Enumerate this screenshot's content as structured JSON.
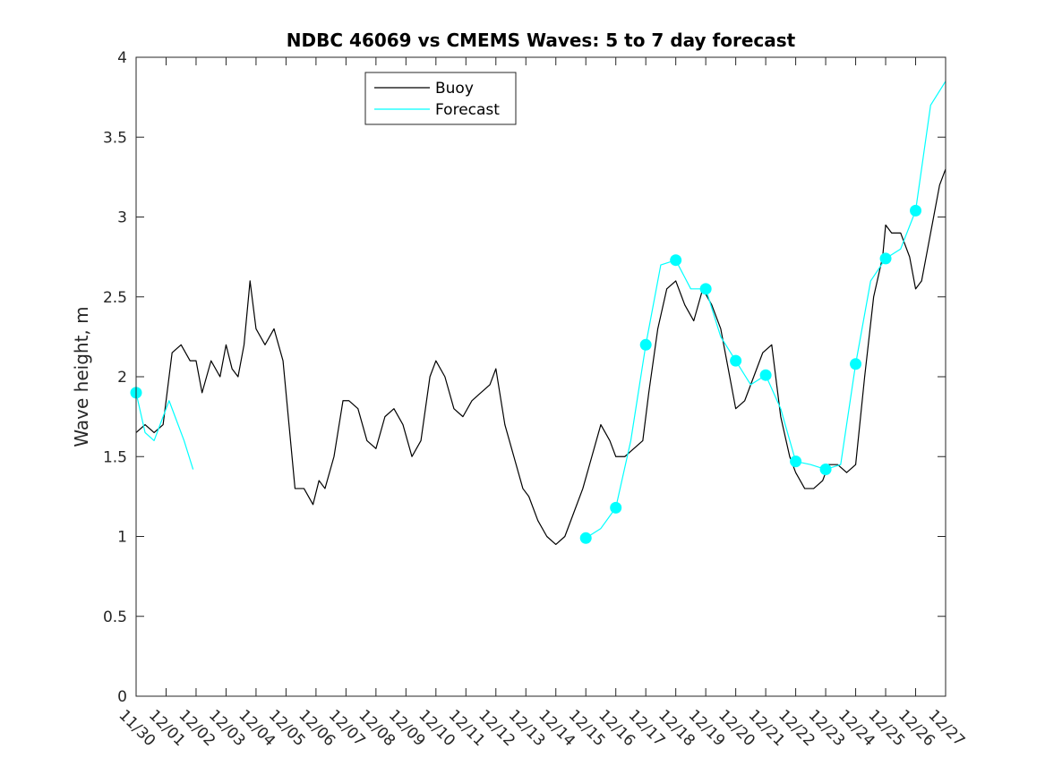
{
  "chart_data": {
    "type": "line",
    "title": "NDBC 46069 vs CMEMS Waves: 5 to 7 day forecast",
    "xlabel": "",
    "ylabel": "Wave height, m",
    "xlim": [
      0,
      27
    ],
    "ylim": [
      0,
      4
    ],
    "x_ticks": [
      "11/30",
      "12/01",
      "12/02",
      "12/03",
      "12/04",
      "12/05",
      "12/06",
      "12/07",
      "12/08",
      "12/09",
      "12/10",
      "12/11",
      "12/12",
      "12/13",
      "12/14",
      "12/15",
      "12/16",
      "12/17",
      "12/18",
      "12/19",
      "12/20",
      "12/21",
      "12/22",
      "12/23",
      "12/24",
      "12/25",
      "12/26",
      "12/27"
    ],
    "y_ticks": [
      "0",
      "0.5",
      "1",
      "1.5",
      "2",
      "2.5",
      "3",
      "3.5",
      "4"
    ],
    "grid": false,
    "legend_position": "top-center",
    "colors": {
      "buoy": "#000000",
      "forecast": "#00ffff"
    },
    "series": [
      {
        "name": "Buoy",
        "color": "#000000",
        "x": [
          0,
          0.3,
          0.6,
          0.9,
          1.0,
          1.2,
          1.5,
          1.8,
          2.0,
          2.2,
          2.5,
          2.8,
          3.0,
          3.2,
          3.4,
          3.6,
          3.8,
          4.0,
          4.3,
          4.6,
          4.9,
          5.1,
          5.3,
          5.6,
          5.9,
          6.1,
          6.3,
          6.6,
          6.9,
          7.1,
          7.4,
          7.7,
          8.0,
          8.3,
          8.6,
          8.9,
          9.2,
          9.5,
          9.8,
          10.0,
          10.3,
          10.6,
          10.9,
          11.2,
          11.5,
          11.8,
          12.0,
          12.3,
          12.6,
          12.9,
          13.1,
          13.4,
          13.7,
          14.0,
          14.3,
          14.6,
          14.9,
          15.2,
          15.5,
          15.8,
          16.0,
          16.3,
          16.6,
          16.9,
          17.1,
          17.4,
          17.7,
          18.0,
          18.3,
          18.6,
          18.9,
          19.2,
          19.5,
          19.8,
          20.0,
          20.3,
          20.6,
          20.9,
          21.2,
          21.5,
          21.8,
          22.0,
          22.3,
          22.6,
          22.9,
          23.1,
          23.4,
          23.7,
          24.0,
          24.3,
          24.6,
          24.9,
          25.0,
          25.2,
          25.5,
          25.8,
          26.0,
          26.2,
          26.4,
          26.6,
          26.8,
          27.0
        ],
        "values": [
          1.65,
          1.7,
          1.65,
          1.7,
          1.85,
          2.15,
          2.2,
          2.1,
          2.1,
          1.9,
          2.1,
          2.0,
          2.2,
          2.05,
          2.0,
          2.2,
          2.6,
          2.3,
          2.2,
          2.3,
          2.1,
          1.7,
          1.3,
          1.3,
          1.2,
          1.35,
          1.3,
          1.5,
          1.85,
          1.85,
          1.8,
          1.6,
          1.55,
          1.75,
          1.8,
          1.7,
          1.5,
          1.6,
          2.0,
          2.1,
          2.0,
          1.8,
          1.75,
          1.85,
          1.9,
          1.95,
          2.05,
          1.7,
          1.5,
          1.3,
          1.25,
          1.1,
          1.0,
          0.95,
          1.0,
          1.15,
          1.3,
          1.5,
          1.7,
          1.6,
          1.5,
          1.5,
          1.55,
          1.6,
          1.9,
          2.3,
          2.55,
          2.6,
          2.45,
          2.35,
          2.55,
          2.45,
          2.3,
          2.0,
          1.8,
          1.85,
          2.0,
          2.15,
          2.2,
          1.75,
          1.5,
          1.4,
          1.3,
          1.3,
          1.35,
          1.45,
          1.45,
          1.4,
          1.45,
          2.0,
          2.5,
          2.75,
          2.95,
          2.9,
          2.9,
          2.75,
          2.55,
          2.6,
          2.8,
          3.0,
          3.2,
          3.3
        ]
      },
      {
        "name": "Forecast",
        "color": "#00ffff",
        "x": [
          0,
          0.3,
          0.6,
          0.9,
          1.1,
          1.3,
          1.6,
          1.9,
          15.0,
          15.5,
          16.0,
          16.5,
          17.0,
          17.5,
          18.0,
          18.5,
          19.0,
          19.5,
          20.0,
          20.5,
          21.0,
          21.5,
          22.0,
          22.5,
          23.0,
          23.5,
          24.0,
          24.5,
          25.0,
          25.5,
          26.0,
          26.5,
          27.0
        ],
        "values": [
          1.9,
          1.65,
          1.6,
          1.75,
          1.85,
          1.75,
          1.6,
          1.42,
          0.99,
          1.05,
          1.18,
          1.6,
          2.2,
          2.7,
          2.73,
          2.55,
          2.55,
          2.25,
          2.1,
          1.95,
          2.01,
          1.8,
          1.47,
          1.45,
          1.42,
          1.45,
          2.08,
          2.6,
          2.74,
          2.8,
          3.04,
          3.7,
          3.85
        ]
      }
    ],
    "markers": {
      "series": "Forecast",
      "x": [
        0,
        15,
        16,
        17,
        18,
        19,
        20,
        21,
        22,
        23,
        24,
        25,
        26
      ],
      "values": [
        1.9,
        0.99,
        1.18,
        2.2,
        2.73,
        2.55,
        2.1,
        2.01,
        1.47,
        1.42,
        2.08,
        2.74,
        3.04
      ]
    }
  }
}
